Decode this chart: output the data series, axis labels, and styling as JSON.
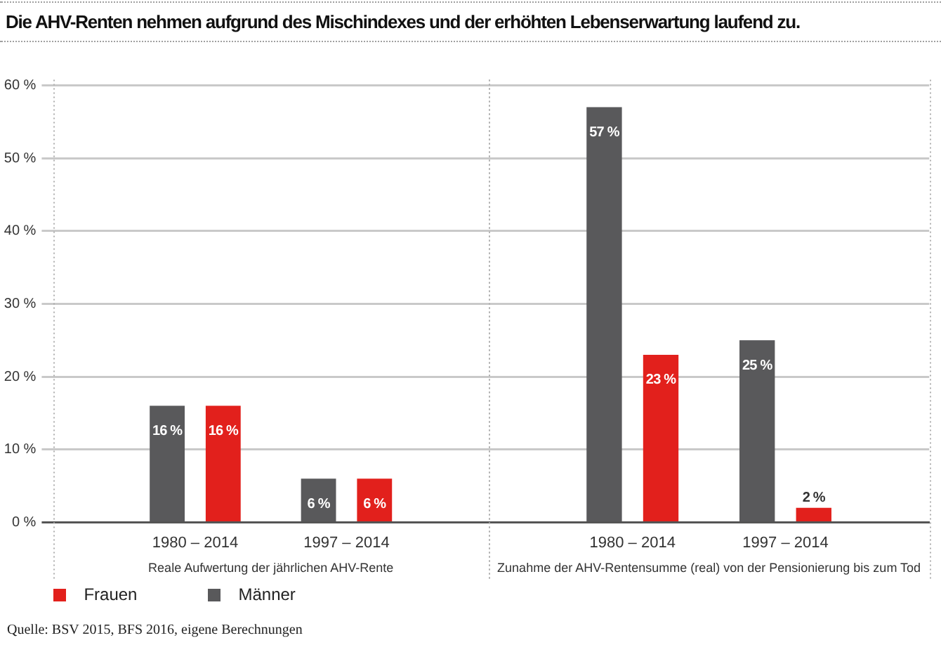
{
  "chart_data": [
    {
      "type": "bar",
      "title": "Die AHV-Renten nehmen aufgrund des Mischindexes und der erhöhten Lebenserwartung laufend zu.",
      "xlabel": "Reale Aufwertung der jährlichen AHV-Rente",
      "categories": [
        "1980 – 2014",
        "1997 – 2014"
      ],
      "series": [
        {
          "name": "Männer",
          "color": "#59595b",
          "values": [
            16,
            6
          ],
          "value_labels": [
            "16 %",
            "6 %"
          ]
        },
        {
          "name": "Frauen",
          "color": "#e2201c",
          "values": [
            16,
            6
          ],
          "value_labels": [
            "16 %",
            "6 %"
          ]
        }
      ],
      "ylim": [
        0,
        60
      ],
      "yticks": [
        {
          "value": 0,
          "label": "0 %"
        },
        {
          "value": 10,
          "label": "10 %"
        },
        {
          "value": 20,
          "label": "20 %"
        },
        {
          "value": 30,
          "label": "30 %"
        },
        {
          "value": 40,
          "label": "40 %"
        },
        {
          "value": 50,
          "label": "50 %"
        },
        {
          "value": 60,
          "label": "60 %"
        }
      ],
      "grid": "y",
      "legend": "bottom left",
      "annotations": [
        "Quelle: BSV 2015, BFS 2016, eigene Berechnungen"
      ]
    },
    {
      "type": "bar",
      "xlabel": "Zunahme der AHV-Rentensumme (real) von der Pensionierung bis zum Tod",
      "categories": [
        "1980 – 2014",
        "1997 – 2014"
      ],
      "series": [
        {
          "color": "#59595b",
          "values": [
            57,
            25
          ],
          "value_labels": [
            "57 %",
            "25 %"
          ]
        },
        {
          "color": "#e2201c",
          "values": [
            23,
            2
          ],
          "value_labels": [
            "23 %",
            "2 %"
          ]
        }
      ],
      "ylim": [
        0,
        60
      ],
      "yticks": [
        0,
        10,
        20,
        30,
        40,
        50,
        60
      ],
      "tick_labels": "x",
      "grid": "y"
    }
  ]
}
